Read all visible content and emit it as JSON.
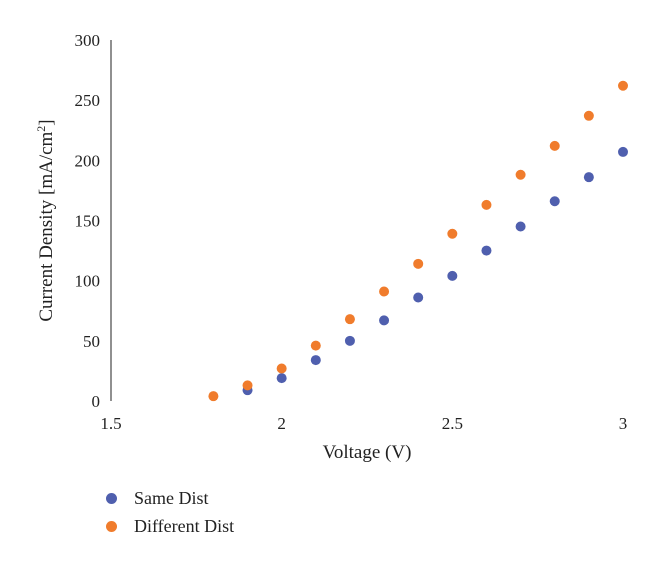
{
  "chart_data": {
    "type": "scatter",
    "title": "",
    "xlabel": "Voltage (V)",
    "ylabel": "Current Density [mA/cm2]",
    "ylabel_main": "Current Density [mA/cm",
    "ylabel_sup": "2",
    "ylabel_close": "]",
    "xlim": [
      1.5,
      3
    ],
    "ylim": [
      0,
      300
    ],
    "x_ticks": [
      "1.5",
      "2",
      "2.5",
      "3"
    ],
    "y_ticks": [
      "0",
      "50",
      "100",
      "150",
      "200",
      "250",
      "300"
    ],
    "grid": false,
    "legend_position": "bottom-left",
    "series": [
      {
        "name": "Same Dist",
        "color": "#4f5fae",
        "points": [
          {
            "x": 1.9,
            "y": 9
          },
          {
            "x": 2.0,
            "y": 19
          },
          {
            "x": 2.1,
            "y": 34
          },
          {
            "x": 2.2,
            "y": 50
          },
          {
            "x": 2.3,
            "y": 67
          },
          {
            "x": 2.4,
            "y": 86
          },
          {
            "x": 2.5,
            "y": 104
          },
          {
            "x": 2.6,
            "y": 125
          },
          {
            "x": 2.7,
            "y": 145
          },
          {
            "x": 2.8,
            "y": 166
          },
          {
            "x": 2.9,
            "y": 186
          },
          {
            "x": 3.0,
            "y": 207
          }
        ]
      },
      {
        "name": "Different Dist",
        "color": "#f07c2c",
        "points": [
          {
            "x": 1.8,
            "y": 4
          },
          {
            "x": 1.9,
            "y": 13
          },
          {
            "x": 2.0,
            "y": 27
          },
          {
            "x": 2.1,
            "y": 46
          },
          {
            "x": 2.2,
            "y": 68
          },
          {
            "x": 2.3,
            "y": 91
          },
          {
            "x": 2.4,
            "y": 114
          },
          {
            "x": 2.5,
            "y": 139
          },
          {
            "x": 2.6,
            "y": 163
          },
          {
            "x": 2.7,
            "y": 188
          },
          {
            "x": 2.8,
            "y": 212
          },
          {
            "x": 2.9,
            "y": 237
          },
          {
            "x": 3.0,
            "y": 262
          }
        ]
      }
    ]
  }
}
